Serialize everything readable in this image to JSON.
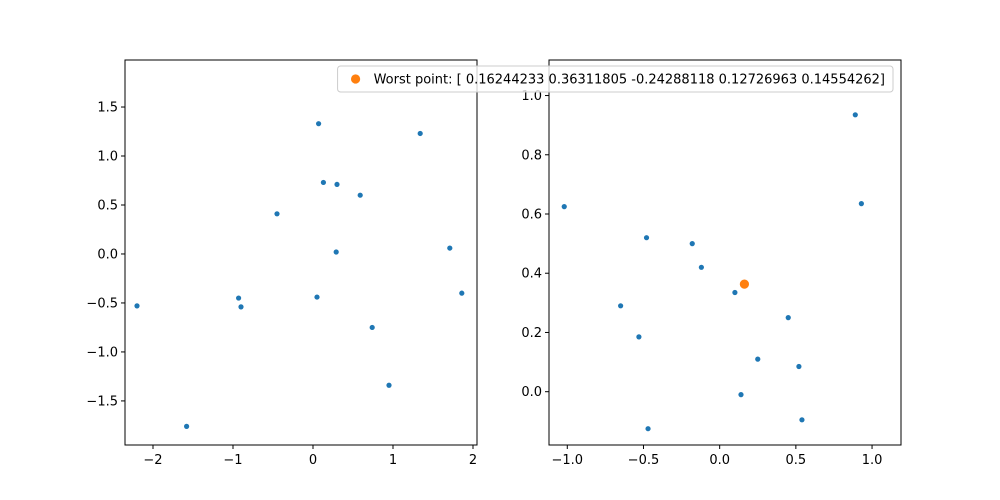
{
  "chart_data": [
    {
      "type": "scatter",
      "xlim": [
        -2.35,
        2.05
      ],
      "ylim": [
        -1.95,
        1.98
      ],
      "xticks": [
        -2,
        -1,
        0,
        1,
        2
      ],
      "xtick_labels": [
        "−2",
        "−1",
        "0",
        "1",
        "2"
      ],
      "yticks": [
        -1.5,
        -1.0,
        -0.5,
        0.0,
        0.5,
        1.0,
        1.5
      ],
      "ytick_labels": [
        "−1.5",
        "−1.0",
        "−0.5",
        "0.0",
        "0.5",
        "1.0",
        "1.5"
      ],
      "grid": false,
      "series": [
        {
          "color": "#1f77b4",
          "points": [
            [
              -2.2,
              -0.53
            ],
            [
              -1.58,
              -1.76
            ],
            [
              -0.93,
              -0.45
            ],
            [
              -0.9,
              -0.54
            ],
            [
              -0.45,
              0.41
            ],
            [
              0.05,
              -0.44
            ],
            [
              0.07,
              1.33
            ],
            [
              0.13,
              0.73
            ],
            [
              0.29,
              0.02
            ],
            [
              0.3,
              0.71
            ],
            [
              0.59,
              0.6
            ],
            [
              0.74,
              -0.75
            ],
            [
              0.95,
              -1.34
            ],
            [
              1.34,
              1.23
            ],
            [
              1.71,
              0.06
            ],
            [
              1.86,
              -0.4
            ]
          ]
        }
      ]
    },
    {
      "type": "scatter",
      "xlim": [
        -1.12,
        1.19
      ],
      "ylim": [
        -0.18,
        1.12
      ],
      "xticks": [
        -1.0,
        -0.5,
        0.0,
        0.5,
        1.0
      ],
      "xtick_labels": [
        "−1.0",
        "−0.5",
        "0.0",
        "0.5",
        "1.0"
      ],
      "yticks": [
        0.0,
        0.2,
        0.4,
        0.6,
        0.8,
        1.0
      ],
      "ytick_labels": [
        "0.0",
        "0.2",
        "0.4",
        "0.6",
        "0.8",
        "1.0"
      ],
      "grid": false,
      "legend_position": "top-right",
      "series": [
        {
          "color": "#1f77b4",
          "points": [
            [
              -1.02,
              0.625
            ],
            [
              -0.65,
              0.29
            ],
            [
              -0.53,
              0.185
            ],
            [
              -0.48,
              0.52
            ],
            [
              -0.47,
              -0.125
            ],
            [
              -0.18,
              0.5
            ],
            [
              -0.12,
              0.42
            ],
            [
              0.1,
              0.335
            ],
            [
              0.14,
              -0.01
            ],
            [
              0.25,
              0.11
            ],
            [
              0.45,
              0.25
            ],
            [
              0.52,
              0.085
            ],
            [
              0.54,
              -0.095
            ],
            [
              0.89,
              0.935
            ],
            [
              0.93,
              0.635
            ]
          ]
        },
        {
          "name": "Worst point: [ 0.16244233  0.36311805 -0.24288118  0.12726963  0.14554262]",
          "color": "#ff7f0e",
          "points": [
            [
              0.1624,
              0.3631
            ]
          ]
        }
      ]
    }
  ]
}
